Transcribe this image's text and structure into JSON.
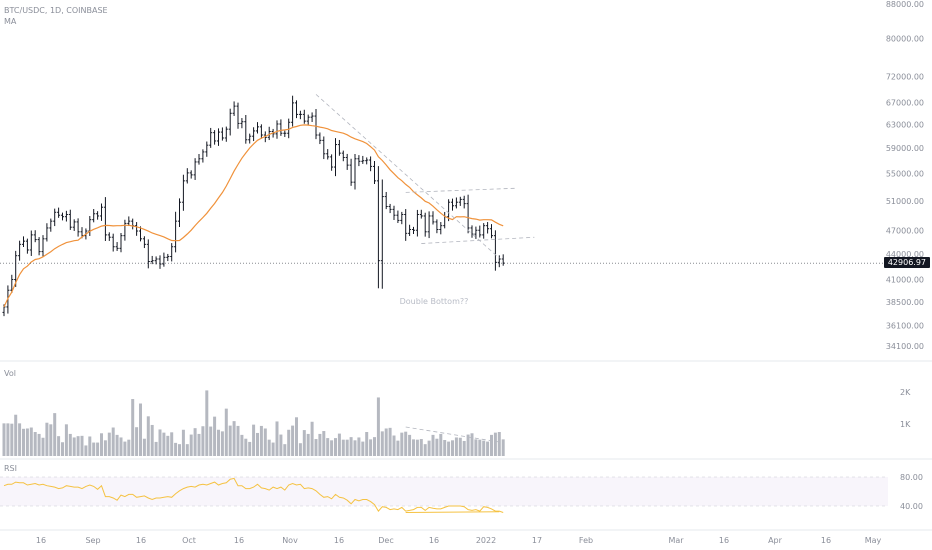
{
  "header": {
    "symbol_line": "BTC/USDC, 1D, COINBASE",
    "ma_label": "MA"
  },
  "panes": {
    "volume_label": "Vol",
    "rsi_label": "RSI"
  },
  "last_price": "42906.97",
  "annotation": "Double Bottom??",
  "colors": {
    "bars": "#131722",
    "ma": "#f0923b",
    "volume": "#b5b8c0",
    "rsi": "#f5c242",
    "dashed": "#b2b5be"
  },
  "chart_data": [
    {
      "type": "ohlc",
      "ylim": [
        33000,
        88000
      ],
      "price_ticks": [
        "88000.00",
        "80000.00",
        "72000.00",
        "67000.00",
        "63000.00",
        "59000.00",
        "55000.00",
        "51000.00",
        "47000.00",
        "44000.00",
        "41000.00",
        "38500.00",
        "36100.00",
        "34100.00"
      ],
      "x_ticks": [
        "16",
        "Sep",
        "16",
        "Oct",
        "16",
        "Nov",
        "16",
        "Dec",
        "16",
        "2022",
        "17",
        "Feb",
        "Mar",
        "16",
        "Apr",
        "16",
        "May"
      ],
      "close": [
        38000,
        39800,
        41000,
        43800,
        45200,
        45600,
        44500,
        46400,
        45800,
        44300,
        45900,
        47300,
        48200,
        49400,
        49000,
        48800,
        49100,
        47400,
        48100,
        46800,
        46300,
        46900,
        48400,
        49200,
        48900,
        50100,
        46400,
        46100,
        44900,
        44700,
        46300,
        47900,
        48200,
        47600,
        46900,
        45900,
        45200,
        43100,
        43200,
        43400,
        42800,
        43600,
        43700,
        44900,
        48200,
        50800,
        53900,
        55100,
        54800,
        56800,
        57300,
        58400,
        59500,
        61600,
        60200,
        61700,
        60700,
        62200,
        65000,
        66300,
        63200,
        63500,
        60400,
        61000,
        61900,
        62600,
        61200,
        60800,
        61800,
        61400,
        63100,
        61500,
        61500,
        63400,
        66900,
        64800,
        64800,
        63600,
        64300,
        64500,
        61200,
        60300,
        58100,
        57600,
        56000,
        59600,
        58200,
        57500,
        56300,
        53700,
        57300,
        56900,
        57000,
        57100,
        56100,
        53900,
        43200,
        51600,
        50200,
        49800,
        49000,
        48300,
        49100,
        46600,
        47100,
        47000,
        49100,
        48900,
        46800,
        48900,
        48100,
        47100,
        47600,
        48800,
        50800,
        50300,
        50800,
        51200,
        50600,
        47300,
        46500,
        47000,
        46400,
        47600,
        47200,
        46300,
        43000,
        43400,
        42906.97
      ],
      "ma_len": 20,
      "volume": {
        "ticks": [
          "2K",
          "1K"
        ],
        "values": [
          1.02,
          1.02,
          1.01,
          1.29,
          1.02,
          0.85,
          0.86,
          0.89,
          0.75,
          0.69,
          0.57,
          1.04,
          0.99,
          1.34,
          0.62,
          0.43,
          0.99,
          0.69,
          0.58,
          0.62,
          0.63,
          0.33,
          0.61,
          0.42,
          0.42,
          0.71,
          0.49,
          0.73,
          0.89,
          0.66,
          0.58,
          0.45,
          0.51,
          1.78,
          0.9,
          1.64,
          0.54,
          1.24,
          0.97,
          0.44,
          0.83,
          0.73,
          0.63,
          0.74,
          0.41,
          0.37,
          0.82,
          0.37,
          0.67,
          0.87,
          0.69,
          0.93,
          2.05,
          0.92,
          1.23,
          0.82,
          0.77,
          1.48,
          0.95,
          1.09,
          0.94,
          0.66,
          0.54,
          0.44,
          0.98,
          0.72,
          0.94,
          0.86,
          0.51,
          0.42,
          1.08,
          0.67,
          0.37,
          0.82,
          0.95,
          1.21,
          0.4,
          0.81,
          0.69,
          1.07,
          0.53,
          0.69,
          0.78,
          0.56,
          0.49,
          0.56,
          0.7,
          0.51,
          0.51,
          0.59,
          0.49,
          0.58,
          0.45,
          0.75,
          0.52,
          0.59,
          1.83,
          0.77,
          0.86,
          0.88,
          0.64,
          0.48,
          0.73,
          0.76,
          0.66,
          0.52,
          0.51,
          0.53,
          0.37,
          0.48,
          0.66,
          0.54,
          0.69,
          0.5,
          0.45,
          0.49,
          0.58,
          0.57,
          0.47,
          0.67,
          0.71,
          0.52,
          0.51,
          0.48,
          0.45,
          0.66,
          0.73,
          0.75,
          0.52
        ]
      },
      "rsi": {
        "ticks": [
          "80.00",
          "40.00"
        ],
        "values": [
          68,
          70,
          70,
          73,
          72,
          72,
          69,
          70,
          71,
          69,
          70,
          68,
          67,
          66,
          64,
          65,
          68,
          67,
          66,
          66,
          64,
          67,
          69,
          67,
          63,
          68,
          53,
          53,
          51,
          48,
          55,
          53,
          56,
          56,
          52,
          53,
          54,
          51,
          49,
          51,
          51,
          52,
          53,
          52,
          57,
          61,
          64,
          66,
          67,
          66,
          69,
          70,
          69,
          71,
          73,
          69,
          71,
          72,
          77,
          78,
          68,
          68,
          64,
          64,
          66,
          70,
          65,
          64,
          62,
          66,
          64,
          66,
          62,
          69,
          71,
          69,
          70,
          64,
          65,
          64,
          61,
          56,
          52,
          53,
          50,
          56,
          52,
          51,
          48,
          43,
          49,
          47,
          49,
          49,
          46,
          42,
          33,
          39,
          38,
          35,
          36,
          35,
          38,
          33,
          34,
          35,
          38,
          38,
          34,
          38,
          37,
          36,
          36,
          38,
          40,
          40,
          40,
          40,
          39,
          35,
          34,
          35,
          33,
          39,
          38,
          36,
          33,
          33,
          31
        ]
      }
    }
  ]
}
